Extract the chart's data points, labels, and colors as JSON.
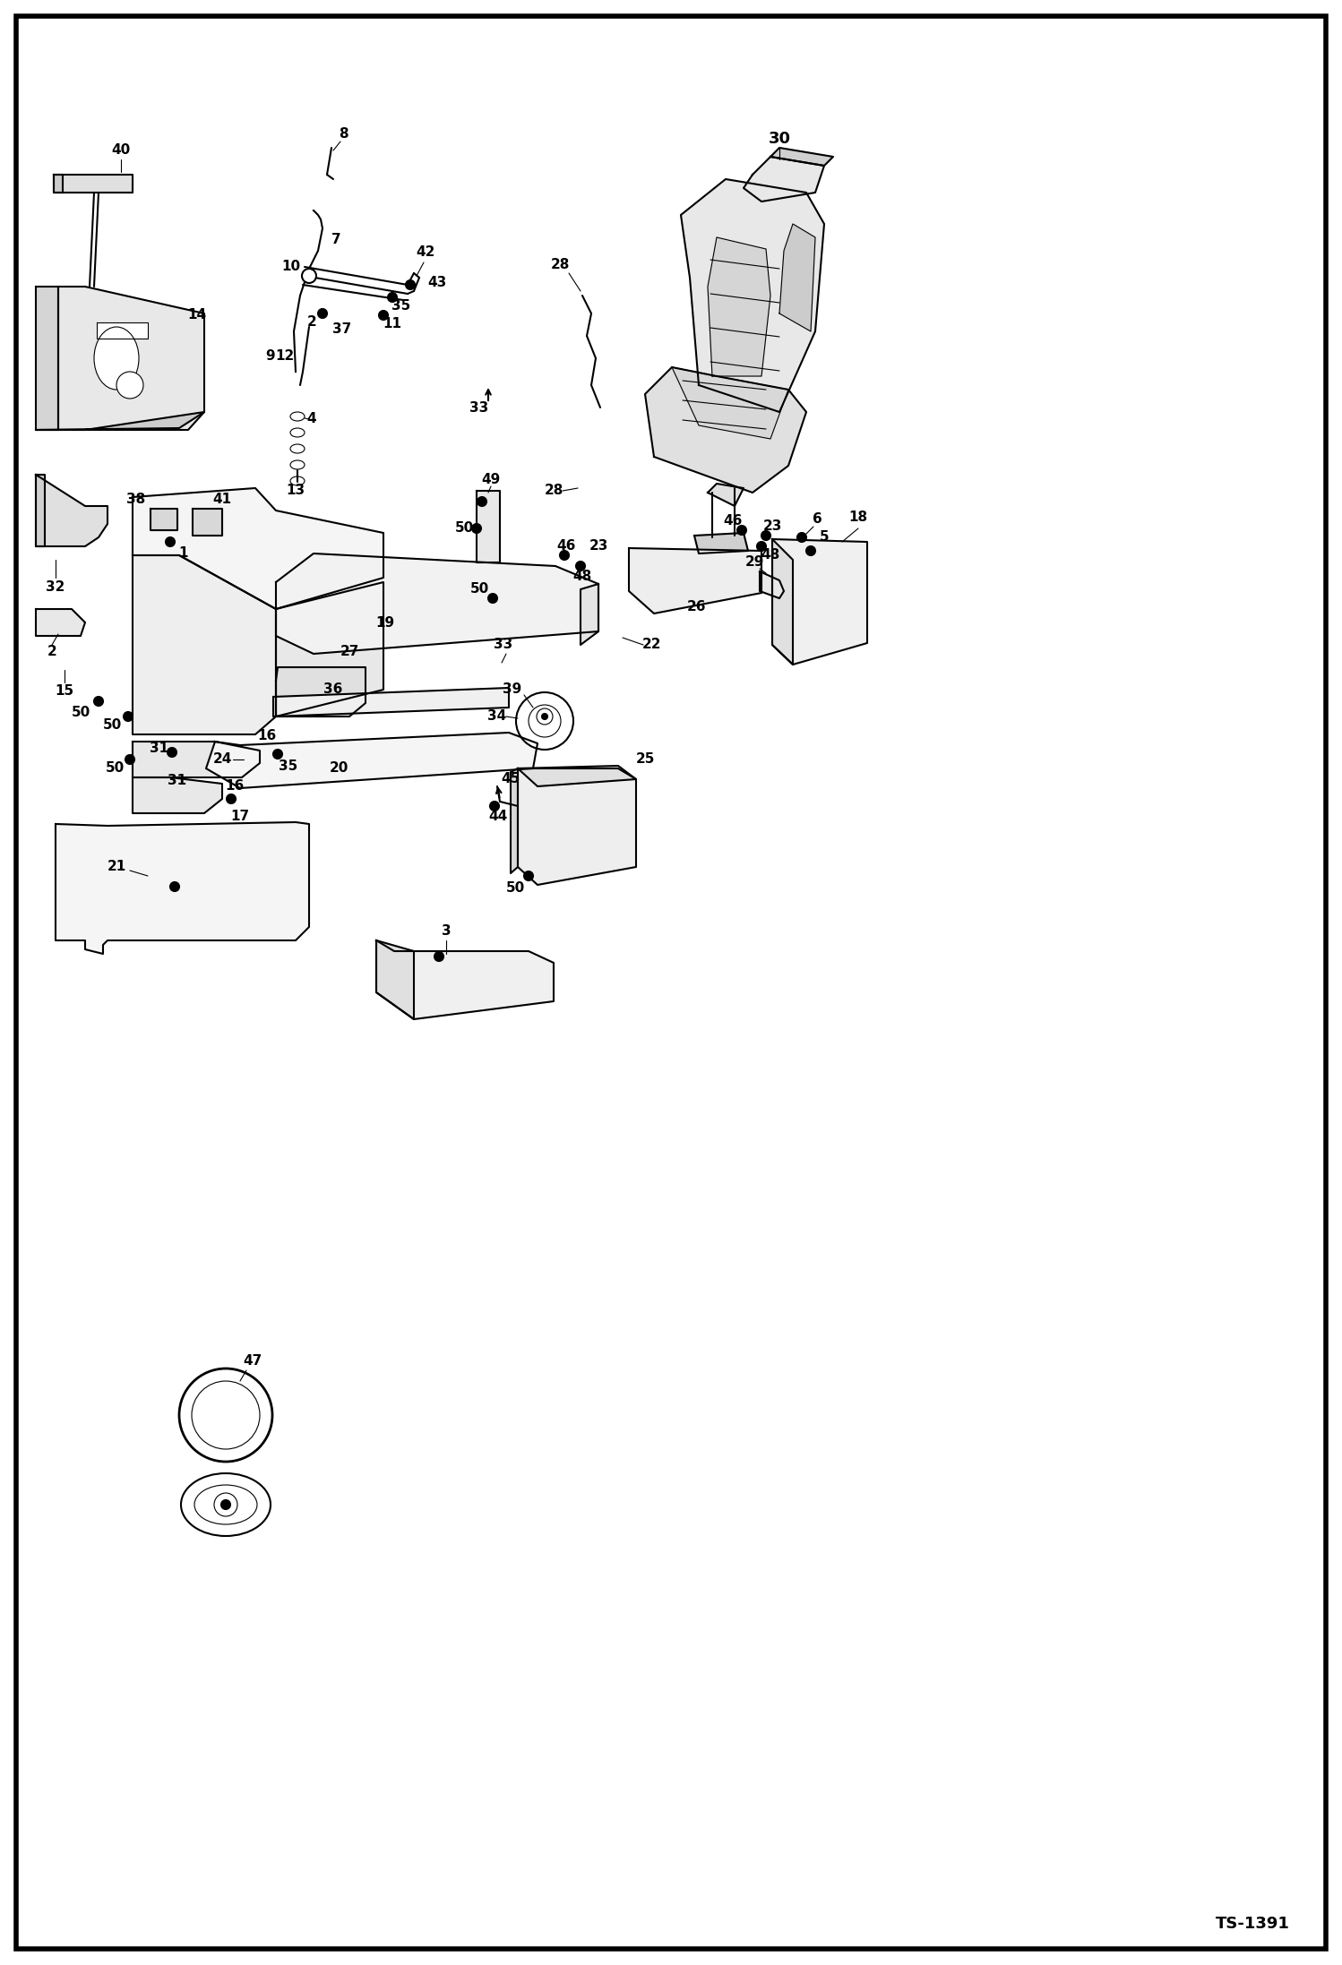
{
  "bg_color": "#ffffff",
  "border_color": "#000000",
  "line_color": "#000000",
  "figsize": [
    14.98,
    21.94
  ],
  "dpi": 100,
  "watermark": "TS-1391",
  "lw_main": 1.5,
  "lw_thin": 0.8,
  "lw_thick": 2.0,
  "lw_border": 4.0
}
